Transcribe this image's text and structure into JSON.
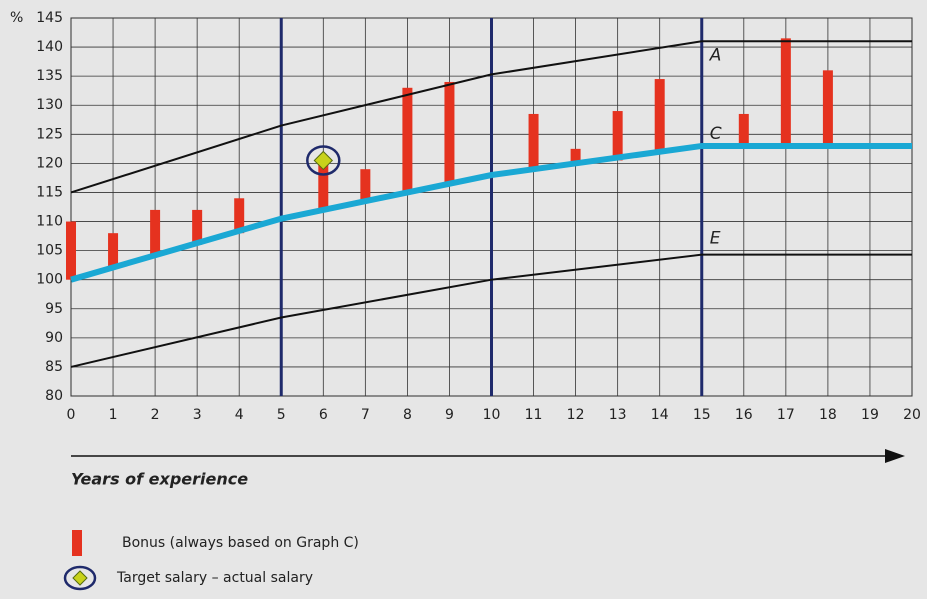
{
  "chart_data": {
    "type": "line",
    "y_unit": "%",
    "x_label": "Years of experience",
    "xlim": [
      0,
      20
    ],
    "ylim": [
      80,
      145
    ],
    "xticks": [
      0,
      1,
      2,
      3,
      4,
      5,
      6,
      7,
      8,
      9,
      10,
      11,
      12,
      13,
      14,
      15,
      16,
      17,
      18,
      19,
      20
    ],
    "yticks": [
      80,
      85,
      90,
      95,
      100,
      105,
      110,
      115,
      120,
      125,
      130,
      135,
      140,
      145
    ],
    "grid": true,
    "vlines": {
      "x": [
        5,
        10,
        15
      ],
      "color": "#1f2a6b"
    },
    "series": [
      {
        "name": "A",
        "color": "#111111",
        "x": [
          0,
          5,
          10,
          15,
          20
        ],
        "values": [
          115,
          126.5,
          135.3,
          141,
          141
        ]
      },
      {
        "name": "C",
        "color": "#1aa8d4",
        "x": [
          0,
          5,
          10,
          15,
          20
        ],
        "values": [
          100,
          110.5,
          118,
          123,
          123
        ]
      },
      {
        "name": "E",
        "color": "#111111",
        "x": [
          0,
          5,
          10,
          15,
          20
        ],
        "values": [
          85,
          93.5,
          100,
          104.3,
          104.3
        ]
      }
    ],
    "bonus": {
      "name": "Bonus (always based on Graph C)",
      "color": "#e5321f",
      "x": [
        0,
        1,
        2,
        3,
        4,
        6,
        7,
        8,
        9,
        11,
        12,
        13,
        14,
        16,
        17,
        18
      ],
      "low": [
        100,
        102,
        104,
        106,
        108,
        112,
        113.5,
        115,
        116.5,
        119,
        120,
        120.5,
        122,
        123,
        123,
        123
      ],
      "high": [
        110,
        108,
        112,
        112,
        114,
        120,
        119,
        133,
        134,
        128.5,
        122.5,
        129,
        134.5,
        128.5,
        141.5,
        136
      ]
    },
    "target": {
      "name": "Target salary – actual salary",
      "x": [
        6
      ],
      "values": [
        120.5
      ]
    }
  }
}
